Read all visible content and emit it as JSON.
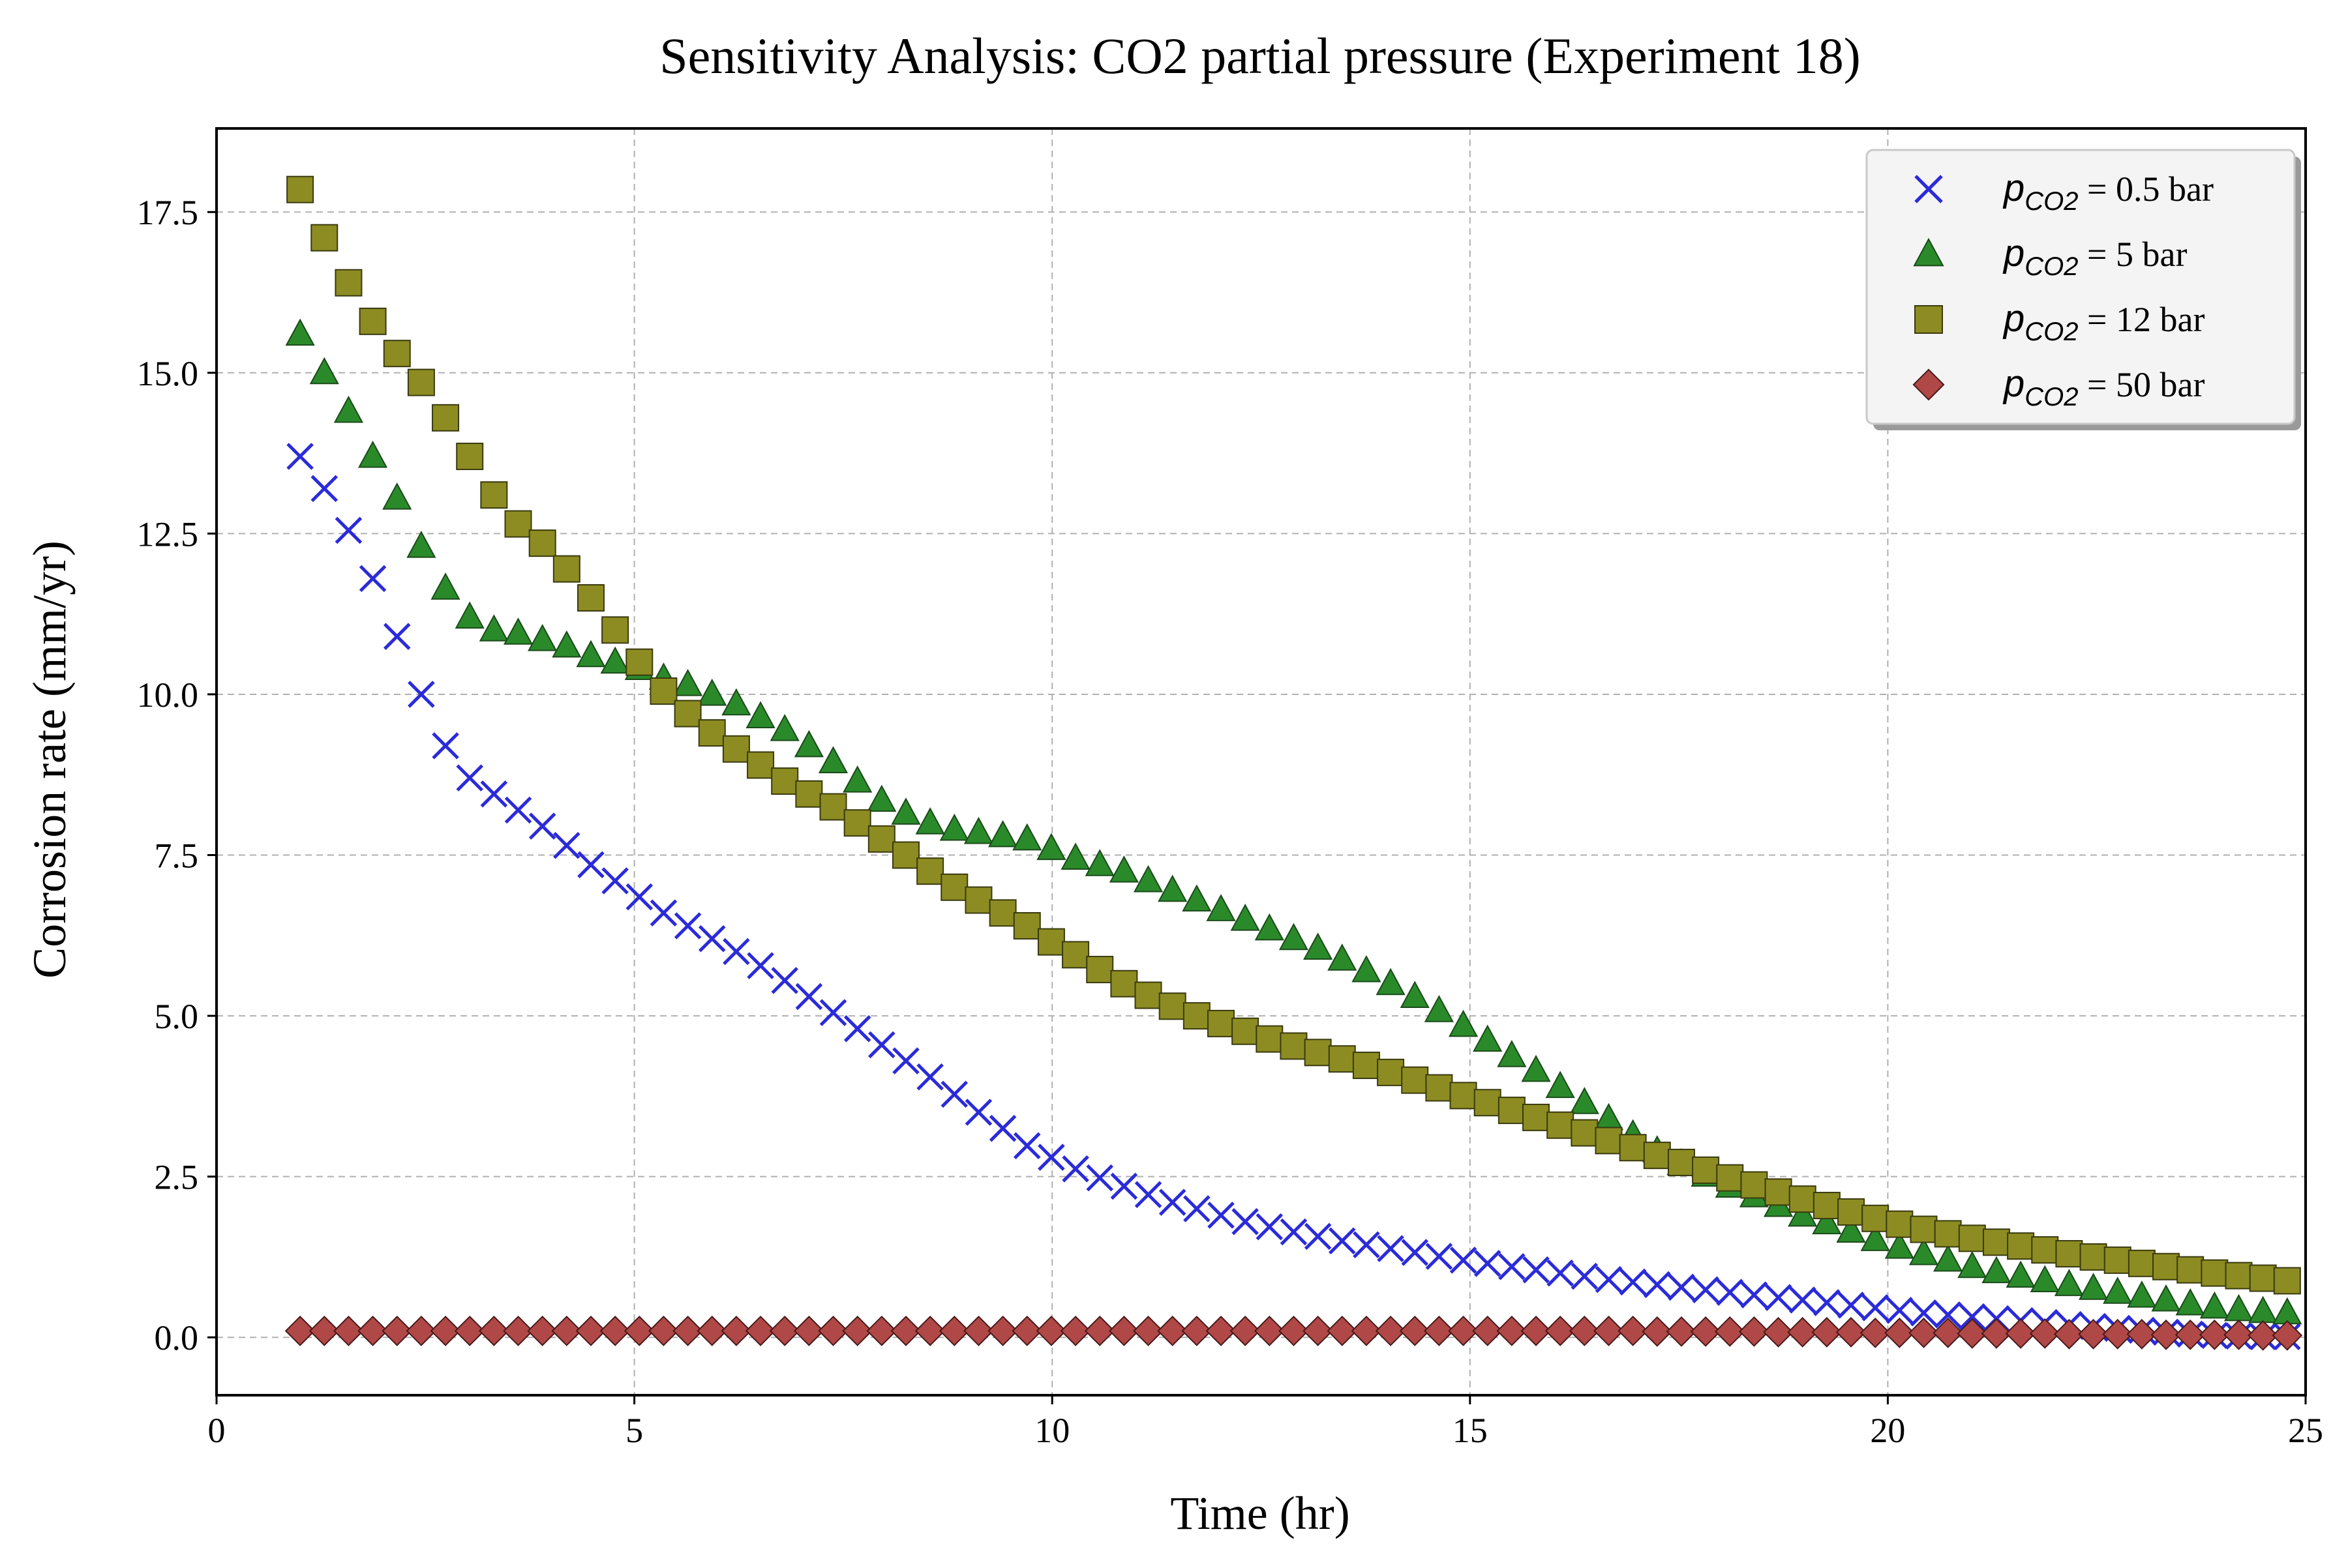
{
  "chart_data": {
    "type": "scatter",
    "title": "Sensitivity Analysis: CO2 partial pressure (Experiment 18)",
    "xlabel": "Time (hr)",
    "ylabel": "Corrosion rate (mm/yr)",
    "xlim": [
      0,
      25
    ],
    "ylim": [
      -0.9,
      18.8
    ],
    "xticks": [
      0,
      5,
      10,
      15,
      20,
      25
    ],
    "yticks": [
      0.0,
      2.5,
      5.0,
      7.5,
      10.0,
      12.5,
      15.0,
      17.5
    ],
    "grid": true,
    "legend_position": "top-right",
    "x_start": 1.0,
    "x_step": 0.29,
    "series": [
      {
        "name": "p_CO2 = 0.5 bar",
        "legend_var": "p",
        "legend_sub": "CO2",
        "legend_rest": " = 0.5 bar",
        "marker": "x",
        "color": "#2b2bd9",
        "values": [
          13.7,
          13.2,
          12.55,
          11.8,
          10.9,
          10.0,
          9.2,
          8.7,
          8.45,
          8.2,
          7.95,
          7.65,
          7.35,
          7.1,
          6.85,
          6.6,
          6.4,
          6.2,
          6.0,
          5.78,
          5.55,
          5.3,
          5.05,
          4.8,
          4.55,
          4.3,
          4.05,
          3.78,
          3.5,
          3.25,
          2.98,
          2.8,
          2.62,
          2.48,
          2.35,
          2.22,
          2.1,
          2.0,
          1.9,
          1.8,
          1.72,
          1.64,
          1.57,
          1.5,
          1.44,
          1.38,
          1.32,
          1.26,
          1.2,
          1.15,
          1.1,
          1.05,
          1.0,
          0.95,
          0.9,
          0.86,
          0.82,
          0.78,
          0.74,
          0.7,
          0.66,
          0.62,
          0.58,
          0.54,
          0.5,
          0.46,
          0.42,
          0.38,
          0.35,
          0.32,
          0.29,
          0.26,
          0.23,
          0.2,
          0.17,
          0.14,
          0.11,
          0.08,
          0.05,
          0.03,
          0.02,
          0.01,
          0.01,
          0.0
        ]
      },
      {
        "name": "p_CO2 = 5 bar",
        "legend_var": "p",
        "legend_sub": "CO2",
        "legend_rest": " = 5 bar",
        "marker": "triangle",
        "color": "#2a8a2a",
        "values": [
          15.6,
          15.0,
          14.4,
          13.7,
          13.05,
          12.3,
          11.65,
          11.2,
          11.0,
          10.95,
          10.85,
          10.75,
          10.6,
          10.5,
          10.4,
          10.25,
          10.15,
          10.0,
          9.85,
          9.65,
          9.45,
          9.2,
          8.95,
          8.65,
          8.35,
          8.15,
          8.0,
          7.9,
          7.85,
          7.8,
          7.75,
          7.6,
          7.45,
          7.35,
          7.25,
          7.1,
          6.95,
          6.8,
          6.65,
          6.5,
          6.35,
          6.2,
          6.05,
          5.88,
          5.7,
          5.5,
          5.3,
          5.08,
          4.85,
          4.62,
          4.38,
          4.15,
          3.9,
          3.65,
          3.4,
          3.15,
          2.9,
          2.7,
          2.52,
          2.35,
          2.2,
          2.05,
          1.9,
          1.78,
          1.65,
          1.52,
          1.4,
          1.3,
          1.2,
          1.1,
          1.02,
          0.95,
          0.88,
          0.82,
          0.76,
          0.7,
          0.64,
          0.58,
          0.52,
          0.47,
          0.43,
          0.4,
          0.38,
          0.36
        ]
      },
      {
        "name": "p_CO2 = 12 bar",
        "legend_var": "p",
        "legend_sub": "CO2",
        "legend_rest": " = 12 bar",
        "marker": "square",
        "color": "#8c8c22",
        "values": [
          17.85,
          17.1,
          16.4,
          15.8,
          15.3,
          14.85,
          14.3,
          13.7,
          13.1,
          12.65,
          12.35,
          11.95,
          11.5,
          11.0,
          10.5,
          10.05,
          9.7,
          9.4,
          9.15,
          8.9,
          8.65,
          8.45,
          8.25,
          8.0,
          7.75,
          7.5,
          7.25,
          7.0,
          6.8,
          6.6,
          6.4,
          6.15,
          5.95,
          5.72,
          5.5,
          5.32,
          5.15,
          5.0,
          4.88,
          4.76,
          4.64,
          4.53,
          4.43,
          4.33,
          4.23,
          4.12,
          4.0,
          3.88,
          3.76,
          3.65,
          3.53,
          3.42,
          3.3,
          3.18,
          3.06,
          2.95,
          2.83,
          2.72,
          2.6,
          2.48,
          2.37,
          2.26,
          2.15,
          2.05,
          1.95,
          1.85,
          1.76,
          1.68,
          1.61,
          1.54,
          1.48,
          1.42,
          1.36,
          1.3,
          1.25,
          1.2,
          1.15,
          1.1,
          1.05,
          1.0,
          0.96,
          0.92,
          0.88,
          0.84
        ]
      },
      {
        "name": "p_CO2 = 50 bar",
        "legend_var": "p",
        "legend_sub": "CO2",
        "legend_rest": " = 50 bar",
        "marker": "diamond",
        "color": "#b04848",
        "values": [
          0.1,
          0.1,
          0.1,
          0.1,
          0.1,
          0.1,
          0.1,
          0.1,
          0.1,
          0.1,
          0.1,
          0.1,
          0.1,
          0.1,
          0.1,
          0.1,
          0.1,
          0.1,
          0.1,
          0.1,
          0.1,
          0.1,
          0.1,
          0.1,
          0.1,
          0.1,
          0.1,
          0.1,
          0.1,
          0.1,
          0.1,
          0.1,
          0.1,
          0.1,
          0.1,
          0.1,
          0.1,
          0.1,
          0.1,
          0.1,
          0.1,
          0.1,
          0.1,
          0.1,
          0.1,
          0.1,
          0.1,
          0.1,
          0.1,
          0.1,
          0.1,
          0.1,
          0.1,
          0.1,
          0.1,
          0.1,
          0.09,
          0.09,
          0.09,
          0.09,
          0.09,
          0.08,
          0.08,
          0.08,
          0.08,
          0.07,
          0.07,
          0.07,
          0.07,
          0.06,
          0.06,
          0.06,
          0.06,
          0.05,
          0.05,
          0.05,
          0.05,
          0.04,
          0.04,
          0.04,
          0.04,
          0.03,
          0.03,
          0.03
        ]
      }
    ]
  }
}
